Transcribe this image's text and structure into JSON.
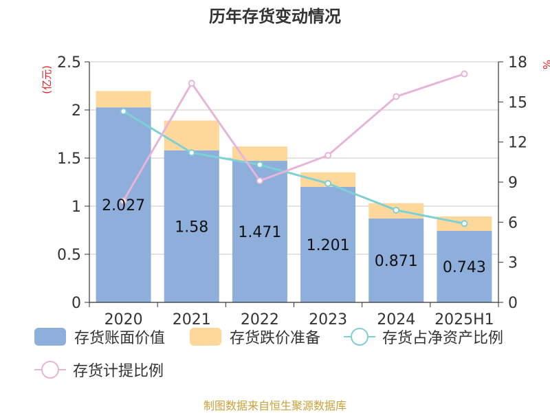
{
  "chart_data": {
    "type": "bar",
    "title": "历年存货变动情况",
    "categories": [
      "2020",
      "2021",
      "2022",
      "2023",
      "2024",
      "2025H1"
    ],
    "y_left": {
      "unit": "(亿元)",
      "range": [
        0,
        2.5
      ],
      "ticks": [
        "0",
        "0.5",
        "1",
        "1.5",
        "2",
        "2.5"
      ]
    },
    "y_right": {
      "unit": "%",
      "range": [
        0,
        18
      ],
      "ticks": [
        "0",
        "3",
        "6",
        "9",
        "12",
        "15",
        "18"
      ]
    },
    "series": [
      {
        "name": "存货账面价值",
        "kind": "bar",
        "stack": true,
        "color": "#8eaedb",
        "values": [
          2.027,
          1.58,
          1.471,
          1.201,
          0.871,
          0.743
        ],
        "labels": [
          "2.027",
          "1.58",
          "1.471",
          "1.201",
          "0.871",
          "0.743"
        ]
      },
      {
        "name": "存货跌价准备",
        "kind": "bar",
        "stack": true,
        "color": "#fdd89a",
        "values": [
          0.17,
          0.31,
          0.15,
          0.15,
          0.16,
          0.15
        ]
      },
      {
        "name": "存货占净资产比例",
        "kind": "line",
        "axis": "right",
        "color": "#7dd0d3",
        "values": [
          14.3,
          11.2,
          10.3,
          8.9,
          6.9,
          5.9
        ]
      },
      {
        "name": "存货计提比例",
        "kind": "line",
        "axis": "right",
        "color": "#e7b5d9",
        "values": [
          7.6,
          16.4,
          9.1,
          11.0,
          15.4,
          17.1
        ]
      }
    ],
    "grid": true,
    "legend": "bottom"
  },
  "footer": {
    "source": "制图数据来自恒生聚源数据库"
  }
}
